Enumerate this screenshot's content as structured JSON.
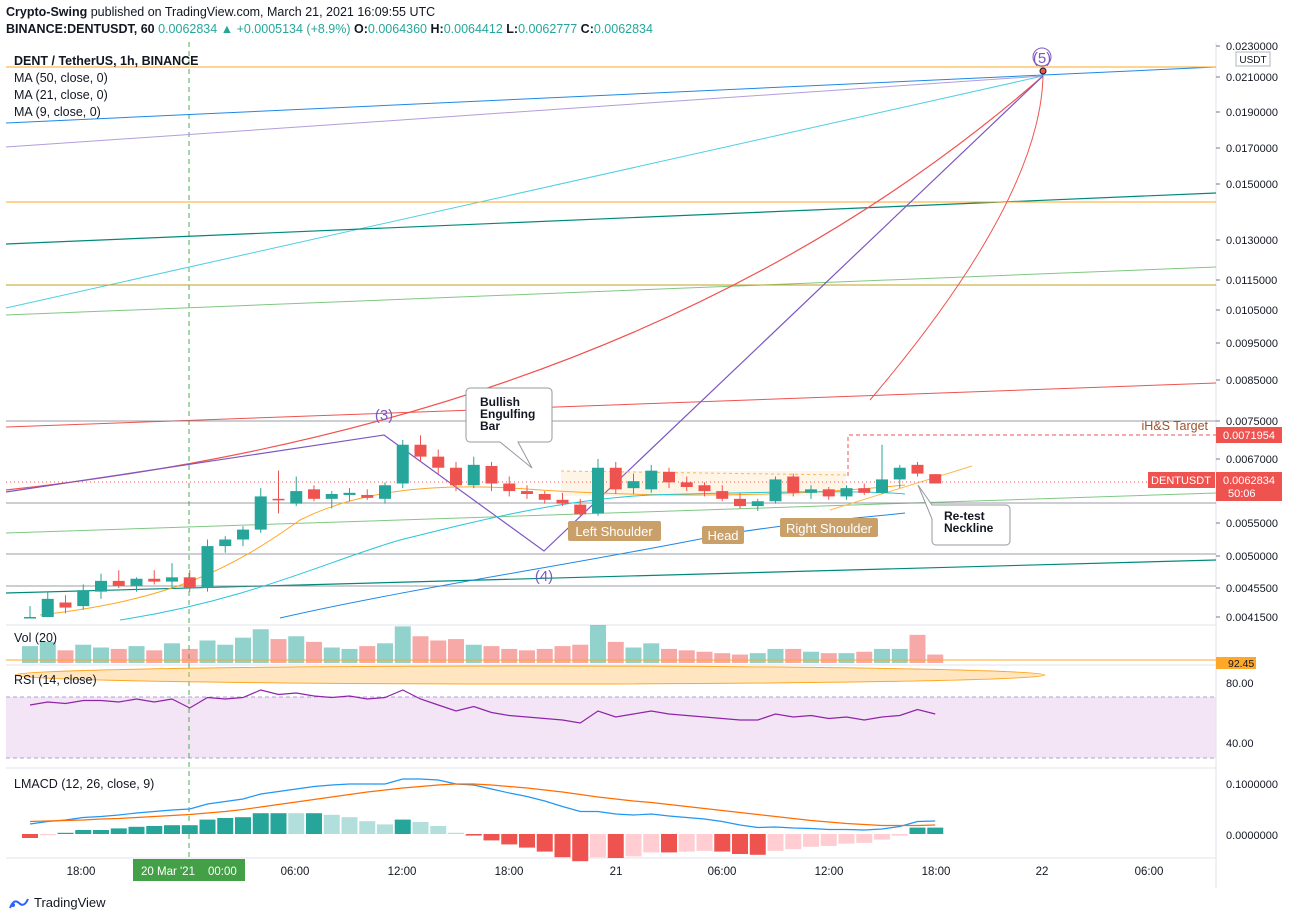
{
  "header": {
    "publisher": "Crypto-Swing",
    "published_text": "published on TradingView.com, March 21, 2021 16:09:55 UTC",
    "symbol": "BINANCE:DENTUSDT, 60",
    "last": "0.0062834",
    "change": "+0.0005134 (+8.9%)",
    "o_label": "O:",
    "o": "0.0064360",
    "h_label": "H:",
    "h": "0.0064412",
    "l_label": "L:",
    "l": "0.0062777",
    "c_label": "C:",
    "c": "0.0062834"
  },
  "legend": {
    "title": "DENT / TetherUS, 1h, BINANCE",
    "ma50": "MA (50, close, 0)",
    "ma21": "MA (21, close, 0)",
    "ma9": "MA (9, close, 0)",
    "vol": "Vol (20)",
    "rsi": "RSI (14, close)",
    "lmacd": "LMACD (12, 26, close, 9)"
  },
  "price_axis": {
    "currency": "USDT",
    "ticks": [
      "0.0230000",
      "0.0210000",
      "0.0190000",
      "0.0170000",
      "0.0150000",
      "0.0130000",
      "0.0115000",
      "0.0105000",
      "0.0095000",
      "0.0085000",
      "0.0075000",
      "0.0067000",
      "0.0061000",
      "0.0055000",
      "0.0050000",
      "0.0045500",
      "0.0041500"
    ],
    "target_label": "0.0071954",
    "symbol_tag": "DENTUSDT",
    "price_tag": "0.0062834",
    "countdown": "50:06"
  },
  "volume_axis": {
    "label": "92.45"
  },
  "rsi_axis": {
    "ticks": [
      "80.00",
      "40.00"
    ]
  },
  "macd_axis": {
    "ticks": [
      "0.1000000",
      "0.0000000"
    ]
  },
  "time_axis": {
    "ticks": [
      "18:00",
      "20 Mar '21",
      "00:00",
      "06:00",
      "12:00",
      "18:00",
      "21",
      "06:00",
      "12:00",
      "18:00",
      "22",
      "06:00"
    ]
  },
  "annotations": {
    "wave3": "(3)",
    "wave4": "(4)",
    "wave5": "(5)",
    "bullish_engulfing": [
      "Bullish",
      "Engulfing",
      "Bar"
    ],
    "left_shoulder": "Left Shoulder",
    "head": "Head",
    "right_shoulder": "Right Shoulder",
    "retest": [
      "Re-test",
      "Neckline"
    ],
    "ihs_target": "iH&S Target"
  },
  "footer": {
    "brand": "TradingView"
  },
  "colors": {
    "up": "#26a69a",
    "down": "#ef5350",
    "orange": "#ff9800",
    "purple": "#7e57c2",
    "rsi_band": "#f3e5f5"
  },
  "chart_data": {
    "type": "candlestick",
    "x_unit": "1h candles, March 20 2021 ~15:00 UTC to March 21 2021 16:00 UTC",
    "candles": [
      {
        "o": 0.004,
        "h": 0.0043,
        "l": 0.00395,
        "c": 0.0041
      },
      {
        "o": 0.0041,
        "h": 0.0045,
        "l": 0.004,
        "c": 0.0044
      },
      {
        "o": 0.00435,
        "h": 0.00445,
        "l": 0.0042,
        "c": 0.00428
      },
      {
        "o": 0.0043,
        "h": 0.0046,
        "l": 0.00425,
        "c": 0.00452
      },
      {
        "o": 0.0045,
        "h": 0.00475,
        "l": 0.0044,
        "c": 0.00465
      },
      {
        "o": 0.00465,
        "h": 0.0048,
        "l": 0.00455,
        "c": 0.00458
      },
      {
        "o": 0.00458,
        "h": 0.0047,
        "l": 0.0045,
        "c": 0.00468
      },
      {
        "o": 0.00468,
        "h": 0.0048,
        "l": 0.0046,
        "c": 0.00464
      },
      {
        "o": 0.00464,
        "h": 0.0049,
        "l": 0.00455,
        "c": 0.0047
      },
      {
        "o": 0.0047,
        "h": 0.0048,
        "l": 0.0045,
        "c": 0.00455
      },
      {
        "o": 0.00455,
        "h": 0.00525,
        "l": 0.0045,
        "c": 0.00515
      },
      {
        "o": 0.00515,
        "h": 0.0053,
        "l": 0.00505,
        "c": 0.00525
      },
      {
        "o": 0.00525,
        "h": 0.00545,
        "l": 0.00515,
        "c": 0.0054
      },
      {
        "o": 0.0054,
        "h": 0.0062,
        "l": 0.00535,
        "c": 0.00605
      },
      {
        "o": 0.006,
        "h": 0.0065,
        "l": 0.0057,
        "c": 0.00598
      },
      {
        "o": 0.0059,
        "h": 0.0064,
        "l": 0.00585,
        "c": 0.00615
      },
      {
        "o": 0.00618,
        "h": 0.00625,
        "l": 0.00595,
        "c": 0.006
      },
      {
        "o": 0.006,
        "h": 0.00615,
        "l": 0.0058,
        "c": 0.0061
      },
      {
        "o": 0.00608,
        "h": 0.0062,
        "l": 0.00595,
        "c": 0.00612
      },
      {
        "o": 0.00608,
        "h": 0.00618,
        "l": 0.00598,
        "c": 0.00602
      },
      {
        "o": 0.006,
        "h": 0.0063,
        "l": 0.0059,
        "c": 0.00625
      },
      {
        "o": 0.00628,
        "h": 0.0071,
        "l": 0.0062,
        "c": 0.007
      },
      {
        "o": 0.007,
        "h": 0.0072,
        "l": 0.00665,
        "c": 0.00675
      },
      {
        "o": 0.00675,
        "h": 0.0069,
        "l": 0.00645,
        "c": 0.00655
      },
      {
        "o": 0.00655,
        "h": 0.00665,
        "l": 0.00615,
        "c": 0.00625
      },
      {
        "o": 0.00625,
        "h": 0.00675,
        "l": 0.0062,
        "c": 0.0066
      },
      {
        "o": 0.00658,
        "h": 0.00665,
        "l": 0.00615,
        "c": 0.00628
      },
      {
        "o": 0.00628,
        "h": 0.0064,
        "l": 0.00605,
        "c": 0.00615
      },
      {
        "o": 0.00615,
        "h": 0.00625,
        "l": 0.006,
        "c": 0.0061
      },
      {
        "o": 0.0061,
        "h": 0.00615,
        "l": 0.0059,
        "c": 0.00598
      },
      {
        "o": 0.00598,
        "h": 0.00612,
        "l": 0.00585,
        "c": 0.0059
      },
      {
        "o": 0.00588,
        "h": 0.006,
        "l": 0.00565,
        "c": 0.00568
      },
      {
        "o": 0.0057,
        "h": 0.0067,
        "l": 0.00565,
        "c": 0.00655
      },
      {
        "o": 0.00655,
        "h": 0.00665,
        "l": 0.0061,
        "c": 0.00618
      },
      {
        "o": 0.0062,
        "h": 0.00645,
        "l": 0.0061,
        "c": 0.00632
      },
      {
        "o": 0.00618,
        "h": 0.0066,
        "l": 0.00612,
        "c": 0.0065
      },
      {
        "o": 0.00648,
        "h": 0.00655,
        "l": 0.0062,
        "c": 0.0063
      },
      {
        "o": 0.0063,
        "h": 0.0064,
        "l": 0.00615,
        "c": 0.00622
      },
      {
        "o": 0.00625,
        "h": 0.0063,
        "l": 0.00605,
        "c": 0.00615
      },
      {
        "o": 0.00615,
        "h": 0.00625,
        "l": 0.00595,
        "c": 0.006
      },
      {
        "o": 0.006,
        "h": 0.00612,
        "l": 0.0058,
        "c": 0.00585
      },
      {
        "o": 0.00585,
        "h": 0.006,
        "l": 0.00575,
        "c": 0.00595
      },
      {
        "o": 0.00595,
        "h": 0.0064,
        "l": 0.0059,
        "c": 0.00635
      },
      {
        "o": 0.0064,
        "h": 0.00645,
        "l": 0.00605,
        "c": 0.00612
      },
      {
        "o": 0.00612,
        "h": 0.00625,
        "l": 0.006,
        "c": 0.00618
      },
      {
        "o": 0.00618,
        "h": 0.00622,
        "l": 0.00598,
        "c": 0.00605
      },
      {
        "o": 0.00605,
        "h": 0.00625,
        "l": 0.00598,
        "c": 0.0062
      },
      {
        "o": 0.0062,
        "h": 0.00628,
        "l": 0.00608,
        "c": 0.00612
      },
      {
        "o": 0.00612,
        "h": 0.007,
        "l": 0.0061,
        "c": 0.00635
      },
      {
        "o": 0.00635,
        "h": 0.0066,
        "l": 0.0062,
        "c": 0.00655
      },
      {
        "o": 0.0066,
        "h": 0.00665,
        "l": 0.0064,
        "c": 0.00645
      },
      {
        "o": 0.00644,
        "h": 0.00644,
        "l": 0.00628,
        "c": 0.00628
      }
    ],
    "volume": [
      1.2,
      1.5,
      0.9,
      1.3,
      1.1,
      1.0,
      1.2,
      0.9,
      1.4,
      1.0,
      1.6,
      1.3,
      1.8,
      2.4,
      1.7,
      1.9,
      1.5,
      1.1,
      1.0,
      1.2,
      1.4,
      2.6,
      1.9,
      1.6,
      1.7,
      1.3,
      1.2,
      1.0,
      0.9,
      1.0,
      1.2,
      1.3,
      2.7,
      1.5,
      1.1,
      1.4,
      1.0,
      0.9,
      0.8,
      0.7,
      0.6,
      0.7,
      1.0,
      1.0,
      0.8,
      0.7,
      0.7,
      0.8,
      1.0,
      1.0,
      2.0,
      0.6
    ],
    "rsi": [
      68,
      70,
      69,
      71,
      71,
      70,
      72,
      70,
      72,
      66,
      73,
      72,
      73,
      78,
      75,
      76,
      74,
      73,
      74,
      72,
      73,
      78,
      72,
      68,
      64,
      67,
      63,
      61,
      60,
      59,
      58,
      56,
      64,
      60,
      62,
      64,
      62,
      61,
      60,
      59,
      58,
      58,
      62,
      60,
      61,
      59,
      60,
      58,
      60,
      61,
      65,
      62
    ],
    "macd": [
      0.02,
      0.025,
      0.028,
      0.033,
      0.035,
      0.038,
      0.042,
      0.045,
      0.048,
      0.05,
      0.06,
      0.065,
      0.07,
      0.08,
      0.085,
      0.09,
      0.095,
      0.098,
      0.1,
      0.1,
      0.1,
      0.11,
      0.11,
      0.108,
      0.1,
      0.098,
      0.09,
      0.082,
      0.075,
      0.066,
      0.055,
      0.045,
      0.045,
      0.04,
      0.038,
      0.04,
      0.036,
      0.033,
      0.03,
      0.025,
      0.018,
      0.013,
      0.014,
      0.012,
      0.011,
      0.009,
      0.009,
      0.008,
      0.01,
      0.015,
      0.025,
      0.026
    ],
    "signal": [
      0.025,
      0.026,
      0.027,
      0.028,
      0.03,
      0.031,
      0.033,
      0.035,
      0.037,
      0.039,
      0.042,
      0.045,
      0.049,
      0.054,
      0.059,
      0.064,
      0.069,
      0.074,
      0.079,
      0.084,
      0.088,
      0.092,
      0.095,
      0.098,
      0.1,
      0.1,
      0.098,
      0.095,
      0.092,
      0.088,
      0.084,
      0.079,
      0.074,
      0.07,
      0.066,
      0.063,
      0.059,
      0.055,
      0.051,
      0.047,
      0.043,
      0.039,
      0.035,
      0.031,
      0.027,
      0.024,
      0.021,
      0.019,
      0.017,
      0.017,
      0.017,
      0.018
    ]
  }
}
